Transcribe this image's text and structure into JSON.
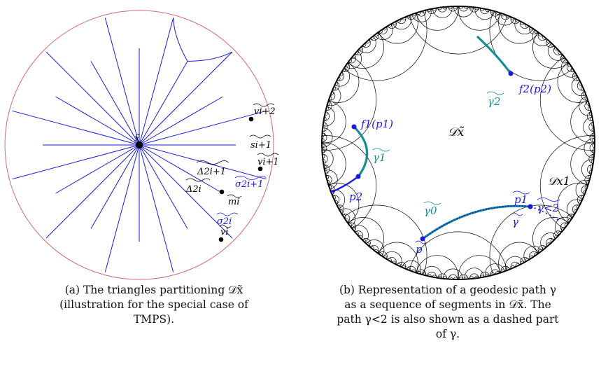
{
  "panel_a": {
    "caption_lines": [
      "(a) The triangles partitioning 𝒟x̃",
      "(illustration for the special case of",
      "TMPS)."
    ],
    "labels": {
      "center": "x̃",
      "v_i_plus_2": "vi+2",
      "s_i_plus_1": "si+1",
      "v_i_plus_1": "vi+1",
      "delta_2i_plus_1": "Δ2i+1",
      "sigma_2i_plus_1": "σ2i+1",
      "delta_2i": "Δ2i",
      "m_i": "mi",
      "sigma_2i": "σ2i",
      "v_i": "vi"
    },
    "colors": {
      "arcs": "#1a1adf",
      "boundary": "#d06a7a",
      "points": "#000000"
    }
  },
  "panel_b": {
    "caption_lines": [
      "(b) Representation of a geodesic path γ",
      "as a sequence of segments in 𝒟x̃. The",
      "path γ<2 is also shown as a dashed part",
      "of γ."
    ],
    "labels": {
      "f1": "f1(p1)",
      "gamma1": "γ1",
      "p2": "p2",
      "gamma2": "γ2",
      "f2": "f2(p2)",
      "domain": "𝒟x̃",
      "domain_x1": "𝒟x1",
      "gamma0": "γ0",
      "p1": "p1",
      "gamma_lt2": "γ<2",
      "gamma": "γ",
      "p": "p"
    },
    "colors": {
      "path": "#168e8e",
      "highlight": "#1a1adf",
      "tiling": "#000000"
    }
  }
}
